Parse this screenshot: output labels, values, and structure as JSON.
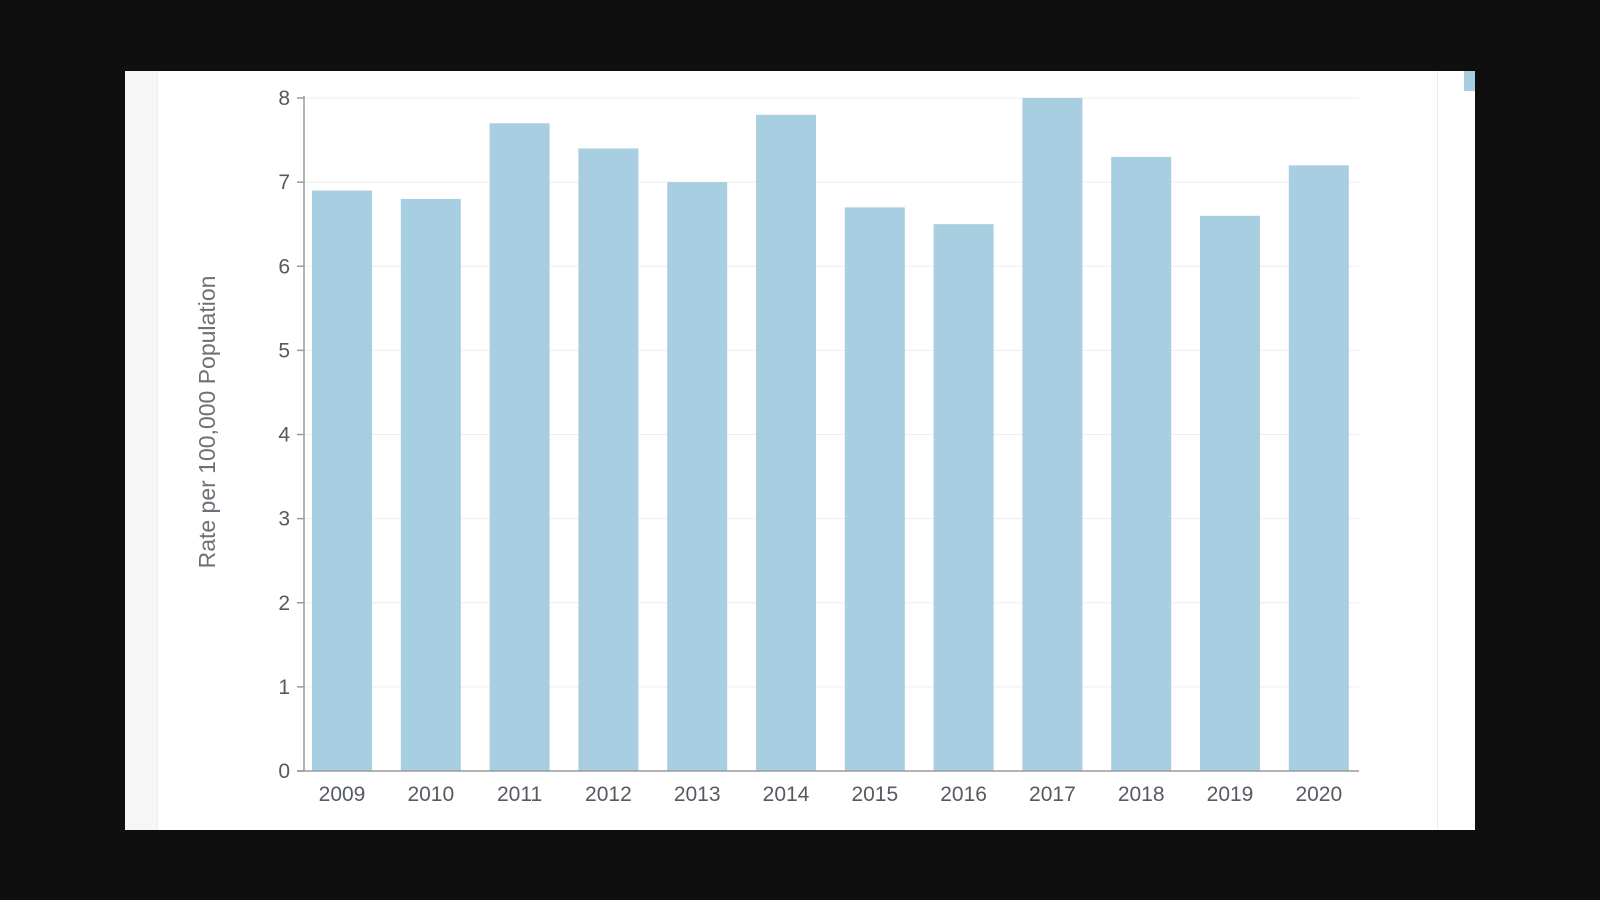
{
  "colors": {
    "bar": "#a8cee1",
    "grid": "#eeeeee",
    "axis": "#9a9a9a",
    "tick_text": "#555a60",
    "legend_swatch": "#a8cee1"
  },
  "chart_data": {
    "type": "bar",
    "categories": [
      "2009",
      "2010",
      "2011",
      "2012",
      "2013",
      "2014",
      "2015",
      "2016",
      "2017",
      "2018",
      "2019",
      "2020"
    ],
    "values": [
      6.9,
      6.8,
      7.7,
      7.4,
      7.0,
      7.8,
      6.7,
      6.5,
      8.0,
      7.3,
      6.6,
      7.2
    ],
    "title": "",
    "xlabel": "",
    "ylabel": "Rate per 100,000 Population",
    "ylim": [
      0,
      8
    ],
    "yticks": [
      "0",
      "1",
      "2",
      "3",
      "4",
      "5",
      "6",
      "7",
      "8"
    ],
    "grid": true
  }
}
